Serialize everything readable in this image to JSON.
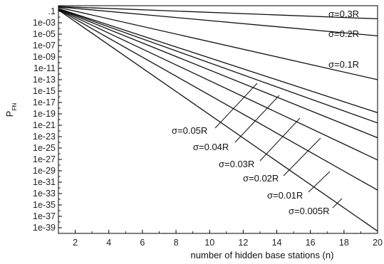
{
  "chart_data": {
    "type": "line",
    "title": "",
    "xlabel": "number of hidden base stations (n)",
    "ylabel": "P",
    "ylabel_subscript": "FN",
    "xlim": [
      1,
      20
    ],
    "ylim_log10": [
      -40,
      0
    ],
    "y_scale": "log",
    "grid": false,
    "x_ticks": [
      2,
      4,
      6,
      8,
      10,
      12,
      14,
      16,
      18,
      20
    ],
    "x_tick_labels": [
      "2",
      "4",
      "6",
      "8",
      "10",
      "12",
      "14",
      "16",
      "18",
      "20"
    ],
    "y_ticks_log10": [
      -1,
      -3,
      -5,
      -7,
      -9,
      -11,
      -13,
      -15,
      -17,
      -19,
      -21,
      -23,
      -25,
      -27,
      -29,
      -31,
      -33,
      -35,
      -37,
      -39
    ],
    "y_tick_labels": [
      ".1",
      "1e-03",
      "1e-05",
      "1e-07",
      "1e-09",
      "1e-11",
      "1e-13",
      "1e-15",
      "1e-17",
      "1e-19",
      "1e-21",
      "1e-23",
      "1e-25",
      "1e-27",
      "1e-29",
      "1e-31",
      "1e-33",
      "1e-35",
      "1e-37",
      "1e-39"
    ],
    "series": [
      {
        "name": "σ=0.3R",
        "x": [
          1,
          20
        ],
        "y_log10": [
          -0.15,
          -2.3
        ]
      },
      {
        "name": "σ=0.2R",
        "x": [
          1,
          20
        ],
        "y_log10": [
          -0.2,
          -5.3
        ]
      },
      {
        "name": "σ=0.1R",
        "x": [
          1,
          20
        ],
        "y_log10": [
          -0.3,
          -13.0
        ]
      },
      {
        "name": "σ=0.05R",
        "x": [
          1,
          20
        ],
        "y_log10": [
          -0.5,
          -18.8
        ]
      },
      {
        "name": "σ=0.04R",
        "x": [
          1,
          20
        ],
        "y_log10": [
          -0.55,
          -20.6
        ]
      },
      {
        "name": "σ=0.03R",
        "x": [
          1,
          20
        ],
        "y_log10": [
          -0.6,
          -23.2
        ]
      },
      {
        "name": "σ=0.02R",
        "x": [
          1,
          20
        ],
        "y_log10": [
          -0.65,
          -27.1
        ]
      },
      {
        "name": "σ=0.01R",
        "x": [
          1,
          20
        ],
        "y_log10": [
          -0.7,
          -32.4
        ]
      },
      {
        "name": "σ=0.005R",
        "x": [
          1,
          20
        ],
        "y_log10": [
          -0.75,
          -39.6
        ]
      }
    ]
  }
}
